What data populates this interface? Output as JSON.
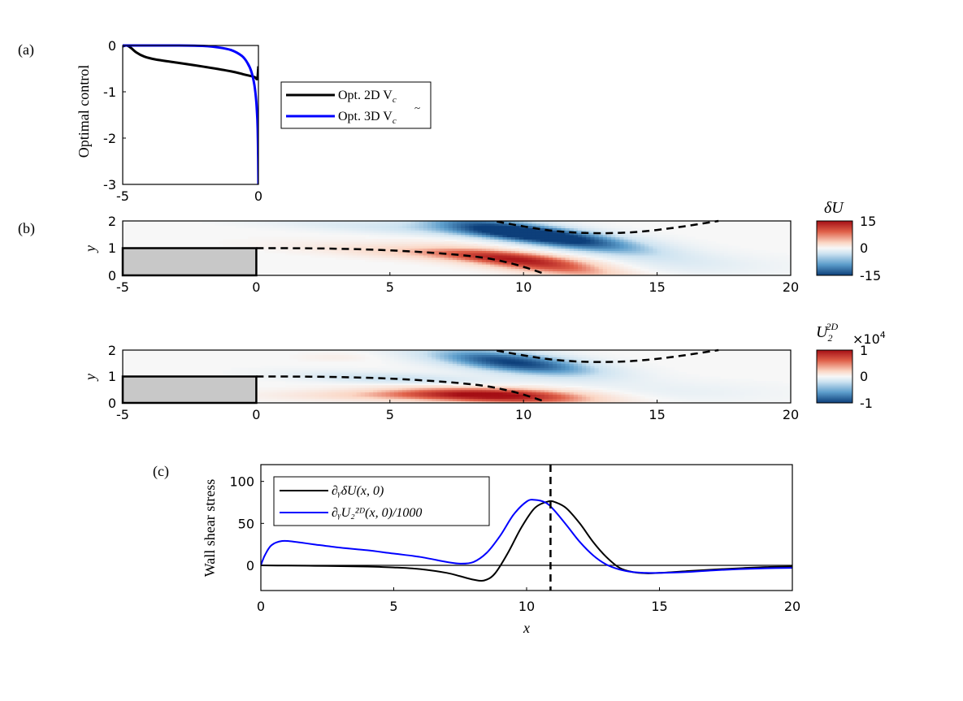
{
  "chart_data": [
    {
      "panel": "a",
      "panel_label": "(a)",
      "type": "line",
      "ylabel": "Optimal control",
      "xlim": [
        -5,
        0
      ],
      "ylim": [
        -3,
        0
      ],
      "xticks": [
        "-5",
        "0"
      ],
      "yticks": [
        "0",
        "-1",
        "-2",
        "-3"
      ],
      "legend": {
        "position": "right-outside",
        "items": [
          {
            "text": "Opt. 2D V",
            "sub": "c",
            "color": "#000000"
          },
          {
            "text": "Opt. 3D V",
            "sub": "c",
            "tilde": true,
            "color": "#0000ff"
          }
        ]
      },
      "series": [
        {
          "name": "Opt. 2D V_c",
          "color": "#000000",
          "x": [
            -5,
            -4.85,
            -4.7,
            -4.5,
            -4.2,
            -3.8,
            -3,
            -2,
            -1,
            -0.5,
            -0.15,
            -0.06,
            -0.03,
            -0.01,
            0
          ],
          "y": [
            -0.02,
            0,
            -0.05,
            -0.15,
            -0.24,
            -0.3,
            -0.37,
            -0.46,
            -0.56,
            -0.63,
            -0.68,
            -0.73,
            -0.67,
            -0.5,
            -0.45
          ]
        },
        {
          "name": "Opt. 3D V_c",
          "color": "#0000ff",
          "x": [
            -5,
            -4,
            -3,
            -2,
            -1.5,
            -1,
            -0.6,
            -0.4,
            -0.25,
            -0.15,
            -0.08,
            -0.04,
            -0.02,
            -0.01,
            0
          ],
          "y": [
            0,
            0,
            0,
            -0.01,
            -0.04,
            -0.1,
            -0.23,
            -0.38,
            -0.58,
            -0.85,
            -1.2,
            -1.6,
            -2,
            -2.45,
            -3
          ]
        }
      ]
    },
    {
      "panel": "b",
      "panel_label": "(b)",
      "type": "heatmap",
      "plots": [
        {
          "ylabel": "y",
          "colorbar_title": "δU",
          "colorbar_ticks": [
            "15",
            "0",
            "-15"
          ],
          "xlim": [
            -5,
            20
          ],
          "ylim": [
            0,
            2
          ],
          "xticks": [
            "-5",
            "0",
            "5",
            "10",
            "15",
            "20"
          ],
          "yticks": [
            "0",
            "1",
            "2"
          ],
          "blobs": [
            {
              "x": 10,
              "y": 1.6,
              "sx": 2.8,
              "sy": 0.28,
              "tilt": -0.14,
              "val": -1.0
            },
            {
              "x": 6,
              "y": 1.72,
              "sx": 3.8,
              "sy": 0.18,
              "tilt": -0.05,
              "val": -0.3
            },
            {
              "x": 12.5,
              "y": 1.2,
              "sx": 2.5,
              "sy": 0.3,
              "tilt": -0.1,
              "val": -0.25
            },
            {
              "x": 10.5,
              "y": 0.45,
              "sx": 2.4,
              "sy": 0.26,
              "tilt": -0.12,
              "val": 0.8
            },
            {
              "x": 7,
              "y": 0.8,
              "sx": 3.5,
              "sy": 0.18,
              "tilt": -0.05,
              "val": 0.35
            },
            {
              "x": 15.5,
              "y": 0.35,
              "sx": 3,
              "sy": 0.3,
              "tilt": 0,
              "val": -0.15
            }
          ]
        },
        {
          "ylabel": "y",
          "colorbar_title": "U",
          "colorbar_title_sub": "2",
          "colorbar_title_sup": "2D",
          "colorbar_multiplier": "×10",
          "colorbar_multiplier_exp": "4",
          "colorbar_ticks": [
            "1",
            "0",
            "-1"
          ],
          "xlim": [
            -5,
            20
          ],
          "ylim": [
            0,
            2
          ],
          "xticks": [
            "-5",
            "0",
            "5",
            "10",
            "15",
            "20"
          ],
          "yticks": [
            "0",
            "1",
            "2"
          ],
          "blobs": [
            {
              "x": 9.6,
              "y": 1.55,
              "sx": 2.3,
              "sy": 0.3,
              "tilt": -0.1,
              "val": -1.0
            },
            {
              "x": 5.5,
              "y": 0.9,
              "sx": 2.8,
              "sy": 0.17,
              "tilt": -0.04,
              "val": -0.4
            },
            {
              "x": 9.2,
              "y": 0.3,
              "sx": 2.7,
              "sy": 0.24,
              "tilt": -0.04,
              "val": 0.9
            },
            {
              "x": 5.5,
              "y": 0.3,
              "sx": 3.2,
              "sy": 0.15,
              "tilt": 0,
              "val": 0.35
            },
            {
              "x": 15.5,
              "y": 0.4,
              "sx": 3,
              "sy": 0.3,
              "tilt": 0,
              "val": -0.12
            },
            {
              "x": 3,
              "y": 1.75,
              "sx": 1,
              "sy": 0.12,
              "tilt": 0,
              "val": 0.1
            }
          ]
        }
      ],
      "step_block": {
        "x": [
          -5,
          0
        ],
        "y": [
          0,
          1
        ],
        "color": "#c8c8c8"
      },
      "dashed_lower": {
        "x": [
          0,
          1,
          3,
          5,
          7,
          8.5,
          9.5,
          10.2,
          10.8
        ],
        "y": [
          1,
          1,
          0.98,
          0.92,
          0.8,
          0.65,
          0.45,
          0.25,
          0.05
        ]
      },
      "dashed_upper": {
        "x": [
          9,
          10,
          11,
          12,
          13,
          14,
          15,
          16,
          17.3
        ],
        "y": [
          1.98,
          1.8,
          1.65,
          1.57,
          1.55,
          1.58,
          1.67,
          1.8,
          2
        ]
      }
    },
    {
      "panel": "c",
      "panel_label": "(c)",
      "type": "line",
      "ylabel": "Wall shear stress",
      "xlabel": "x",
      "xlim": [
        0,
        20
      ],
      "ylim": [
        -30,
        120
      ],
      "xticks": [
        "0",
        "5",
        "10",
        "15",
        "20"
      ],
      "yticks": [
        "0",
        "50",
        "100"
      ],
      "vline_x": 10.9,
      "legend": {
        "position": "top-left",
        "items": [
          {
            "text": "∂ᵧδU(x, 0)",
            "color": "#000000"
          },
          {
            "text": "∂ᵧU₂²ᴰ(x, 0)/1000",
            "color": "#0000ff"
          }
        ]
      },
      "series": [
        {
          "name": "∂yδU(x,0)",
          "color": "#000000",
          "x": [
            0,
            1,
            2,
            3,
            4,
            5,
            6,
            7,
            7.5,
            8,
            8.4,
            8.8,
            9.3,
            9.8,
            10.3,
            10.8,
            11.1,
            11.5,
            12,
            12.5,
            13,
            13.5,
            14,
            14.5,
            15,
            16,
            17,
            18,
            19,
            20
          ],
          "y": [
            0,
            -0.3,
            -0.6,
            -1,
            -1.5,
            -2.5,
            -4.5,
            -9,
            -13,
            -17,
            -18,
            -10,
            15,
            45,
            68,
            76,
            75,
            68,
            50,
            28,
            10,
            -3,
            -8,
            -9.5,
            -9,
            -7,
            -5,
            -3.5,
            -2,
            -1.5
          ]
        },
        {
          "name": "∂yU2^2D(x,0)/1000",
          "color": "#0000ff",
          "x": [
            0,
            0.15,
            0.4,
            0.8,
            1.3,
            2,
            3,
            4,
            5,
            6,
            7,
            7.5,
            8,
            8.5,
            9,
            9.5,
            10,
            10.3,
            10.7,
            11,
            11.5,
            12,
            12.5,
            13,
            13.5,
            14,
            14.5,
            15,
            16,
            17,
            18,
            19,
            20
          ],
          "y": [
            0,
            12,
            24,
            29,
            28,
            25,
            21,
            18,
            14,
            10,
            4,
            2,
            4,
            15,
            35,
            60,
            76,
            78,
            75,
            67,
            48,
            28,
            12,
            1,
            -5,
            -8,
            -9,
            -9,
            -8,
            -6,
            -4.5,
            -3.5,
            -3
          ]
        }
      ]
    }
  ]
}
